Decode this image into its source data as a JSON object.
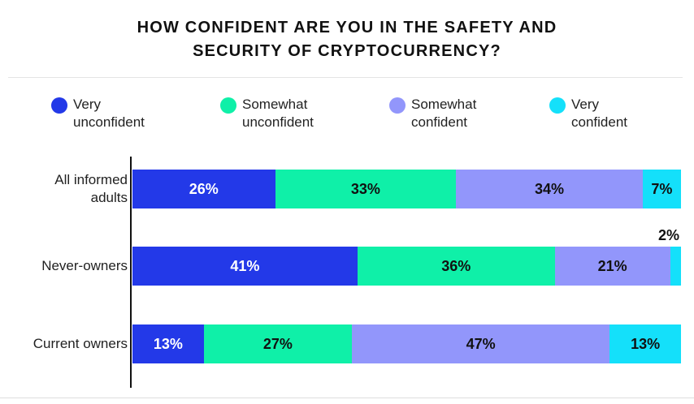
{
  "chart_data": {
    "type": "bar",
    "orientation": "horizontal-stacked",
    "title_lines": [
      "HOW CONFIDENT ARE YOU IN THE SAFETY AND",
      "SECURITY OF CRYPTOCURRENCY?"
    ],
    "categories": [
      {
        "lines": [
          "All informed",
          "adults"
        ]
      },
      {
        "lines": [
          "Never-owners"
        ]
      },
      {
        "lines": [
          "Current owners"
        ]
      }
    ],
    "series": [
      {
        "name": "Very unconfident",
        "legend_lines": [
          "Very",
          "unconfident"
        ],
        "color": "#2339e8",
        "text_color": "#ffffff",
        "values": [
          26,
          41,
          13
        ]
      },
      {
        "name": "Somewhat unconfident",
        "legend_lines": [
          "Somewhat",
          "unconfident"
        ],
        "color": "#0ff0a8",
        "text_color": "#111111",
        "values": [
          33,
          36,
          27
        ]
      },
      {
        "name": "Somewhat confident",
        "legend_lines": [
          "Somewhat",
          "confident"
        ],
        "color": "#9296fb",
        "text_color": "#111111",
        "values": [
          34,
          21,
          47
        ]
      },
      {
        "name": "Very confident",
        "legend_lines": [
          "Very",
          "confident"
        ],
        "color": "#14e0fa",
        "text_color": "#111111",
        "values": [
          7,
          2,
          13
        ]
      }
    ],
    "data_labels": [
      [
        "26%",
        "33%",
        "34%",
        "7%"
      ],
      [
        "41%",
        "36%",
        "21%",
        "2%"
      ],
      [
        "13%",
        "27%",
        "47%",
        "13%"
      ]
    ],
    "xlim": [
      0,
      100
    ],
    "legend_position": "top",
    "grid": false
  }
}
